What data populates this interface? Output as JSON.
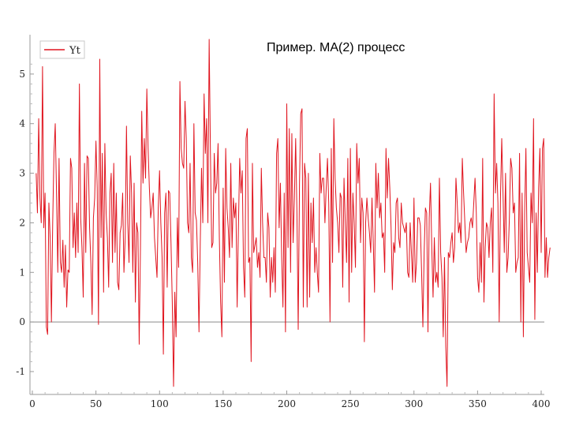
{
  "title": "Пример. МА(2) процесс",
  "chart_data": {
    "type": "line",
    "title": "Пример. МА(2) процесс",
    "xlabel": "",
    "ylabel": "",
    "xlim": [
      0,
      400
    ],
    "ylim": [
      -1.35,
      5.65
    ],
    "x_ticks": [
      "0",
      "50",
      "100",
      "150",
      "200",
      "250",
      "300",
      "350",
      "400"
    ],
    "y_ticks": [
      "-1",
      "0",
      "1",
      "2",
      "3",
      "4",
      "5"
    ],
    "grid": false,
    "legend_position": "top-left",
    "zero_line": true,
    "series": [
      {
        "name": "Yt",
        "color": "#e0141e",
        "x_start": 3,
        "values": [
          3.0,
          2.2,
          4.1,
          2.5,
          2.0,
          5.15,
          1.9,
          2.6,
          -0.1,
          -0.25,
          2.4,
          1.7,
          0.0,
          2.0,
          3.4,
          4.0,
          2.6,
          1.0,
          3.3,
          1.2,
          1.0,
          1.65,
          0.7,
          1.55,
          0.3,
          1.05,
          1.0,
          3.3,
          3.1,
          1.5,
          2.2,
          1.3,
          2.4,
          1.4,
          4.8,
          2.1,
          1.5,
          0.5,
          3.2,
          1.4,
          3.35,
          3.3,
          1.9,
          1.2,
          0.15,
          2.1,
          2.5,
          3.65,
          2.7,
          -0.05,
          5.3,
          1.7,
          3.4,
          0.6,
          3.6,
          2.2,
          1.7,
          0.7,
          2.6,
          3.0,
          1.2,
          3.2,
          1.4,
          2.6,
          0.8,
          0.65,
          1.8,
          1.95,
          2.6,
          1.0,
          1.7,
          3.95,
          2.0,
          1.2,
          3.35,
          2.6,
          1.0,
          2.8,
          0.4,
          2.0,
          1.8,
          -0.45,
          1.5,
          4.25,
          2.8,
          3.7,
          2.9,
          4.7,
          3.5,
          2.7,
          2.1,
          2.3,
          2.6,
          1.7,
          1.3,
          0.9,
          2.3,
          3.05,
          2.0,
          1.3,
          -0.65,
          2.2,
          2.6,
          0.7,
          2.65,
          2.6,
          1.6,
          0.4,
          -1.3,
          0.6,
          -0.3,
          2.1,
          1.1,
          4.85,
          3.5,
          3.2,
          3.1,
          4.45,
          3.7,
          2.0,
          1.8,
          3.2,
          1.3,
          1.0,
          4.0,
          2.2,
          2.05,
          1.2,
          -0.2,
          1.6,
          3.1,
          2.0,
          4.6,
          3.4,
          4.1,
          2.0,
          5.7,
          3.4,
          1.5,
          1.6,
          3.4,
          2.6,
          2.8,
          3.6,
          1.7,
          0.4,
          -0.3,
          2.7,
          0.8,
          3.5,
          2.3,
          1.9,
          1.3,
          3.2,
          1.5,
          2.5,
          2.1,
          2.4,
          0.3,
          1.9,
          3.3,
          2.6,
          3.05,
          1.1,
          0.5,
          3.7,
          3.9,
          1.2,
          1.3,
          -0.8,
          3.2,
          1.4,
          1.55,
          1.7,
          1.1,
          1.4,
          0.9,
          3.1,
          2.0,
          1.3,
          1.3,
          0.8,
          2.2,
          1.9,
          0.5,
          1.3,
          0.8,
          1.5,
          0.6,
          3.4,
          3.7,
          1.9,
          2.8,
          1.3,
          0.3,
          2.6,
          -0.2,
          4.4,
          1.5,
          3.9,
          1.0,
          3.8,
          1.6,
          2.5,
          3.7,
          2.2,
          -0.15,
          2.8,
          4.2,
          4.3,
          0.3,
          3.2,
          2.9,
          0.3,
          3.0,
          0.5,
          2.4,
          1.6,
          2.5,
          1.0,
          1.5,
          1.0,
          0.6,
          3.4,
          2.6,
          2.9,
          2.9,
          2.0,
          2.7,
          3.3,
          2.4,
          0.0,
          3.5,
          1.2,
          4.1,
          2.9,
          2.3,
          2.0,
          1.4,
          2.6,
          2.5,
          0.7,
          2.9,
          2.0,
          1.2,
          3.3,
          0.4,
          3.5,
          1.0,
          2.6,
          2.0,
          1.1,
          3.6,
          2.8,
          3.3,
          1.6,
          2.5,
          2.2,
          -0.4,
          2.0,
          2.5,
          2.1,
          1.8,
          1.4,
          2.5,
          1.6,
          0.6,
          3.2,
          2.3,
          3.0,
          2.1,
          2.4,
          1.7,
          1.8,
          1.0,
          3.5,
          2.5,
          3.3,
          2.7,
          1.9,
          0.65,
          1.6,
          1.4,
          2.4,
          2.5,
          1.7,
          1.5,
          2.4,
          2.0,
          1.9,
          1.8,
          2.0,
          1.0,
          0.9,
          2.0,
          1.4,
          0.8,
          2.5,
          0.8,
          1.2,
          2.1,
          2.1,
          1.95,
          1.0,
          -0.1,
          1.4,
          2.3,
          2.2,
          -0.2,
          2.1,
          2.8,
          1.5,
          0.5,
          1.7,
          0.8,
          1.0,
          0.7,
          2.9,
          1.4,
          0.9,
          -0.3,
          1.3,
          -0.5,
          -1.3,
          1.4,
          1.3,
          1.6,
          1.8,
          1.2,
          1.5,
          2.9,
          2.4,
          1.8,
          2.0,
          1.6,
          3.3,
          2.6,
          2.0,
          1.4,
          1.6,
          1.7,
          2.0,
          2.1,
          1.9,
          2.4,
          2.9,
          2.2,
          0.9,
          0.6,
          1.6,
          0.8,
          3.3,
          0.4,
          1.5,
          2.0,
          1.9,
          1.3,
          2.0,
          2.3,
          1.0,
          4.6,
          2.6,
          3.2,
          2.4,
          0.0,
          2.5,
          3.7,
          2.6,
          1.4,
          3.0,
          1.0,
          1.3,
          2.1,
          3.3,
          3.1,
          2.2,
          2.4,
          1.0,
          1.2,
          1.3,
          3.4,
          0.0,
          2.6,
          -0.3,
          2.2,
          3.5,
          1.4,
          1.1,
          0.8,
          2.6,
          2.0,
          4.1,
          0.05,
          2.2,
          1.0,
          2.7,
          3.5,
          1.4,
          3.5,
          3.7,
          0.9,
          1.7,
          0.9,
          1.3,
          1.5
        ]
      }
    ]
  }
}
